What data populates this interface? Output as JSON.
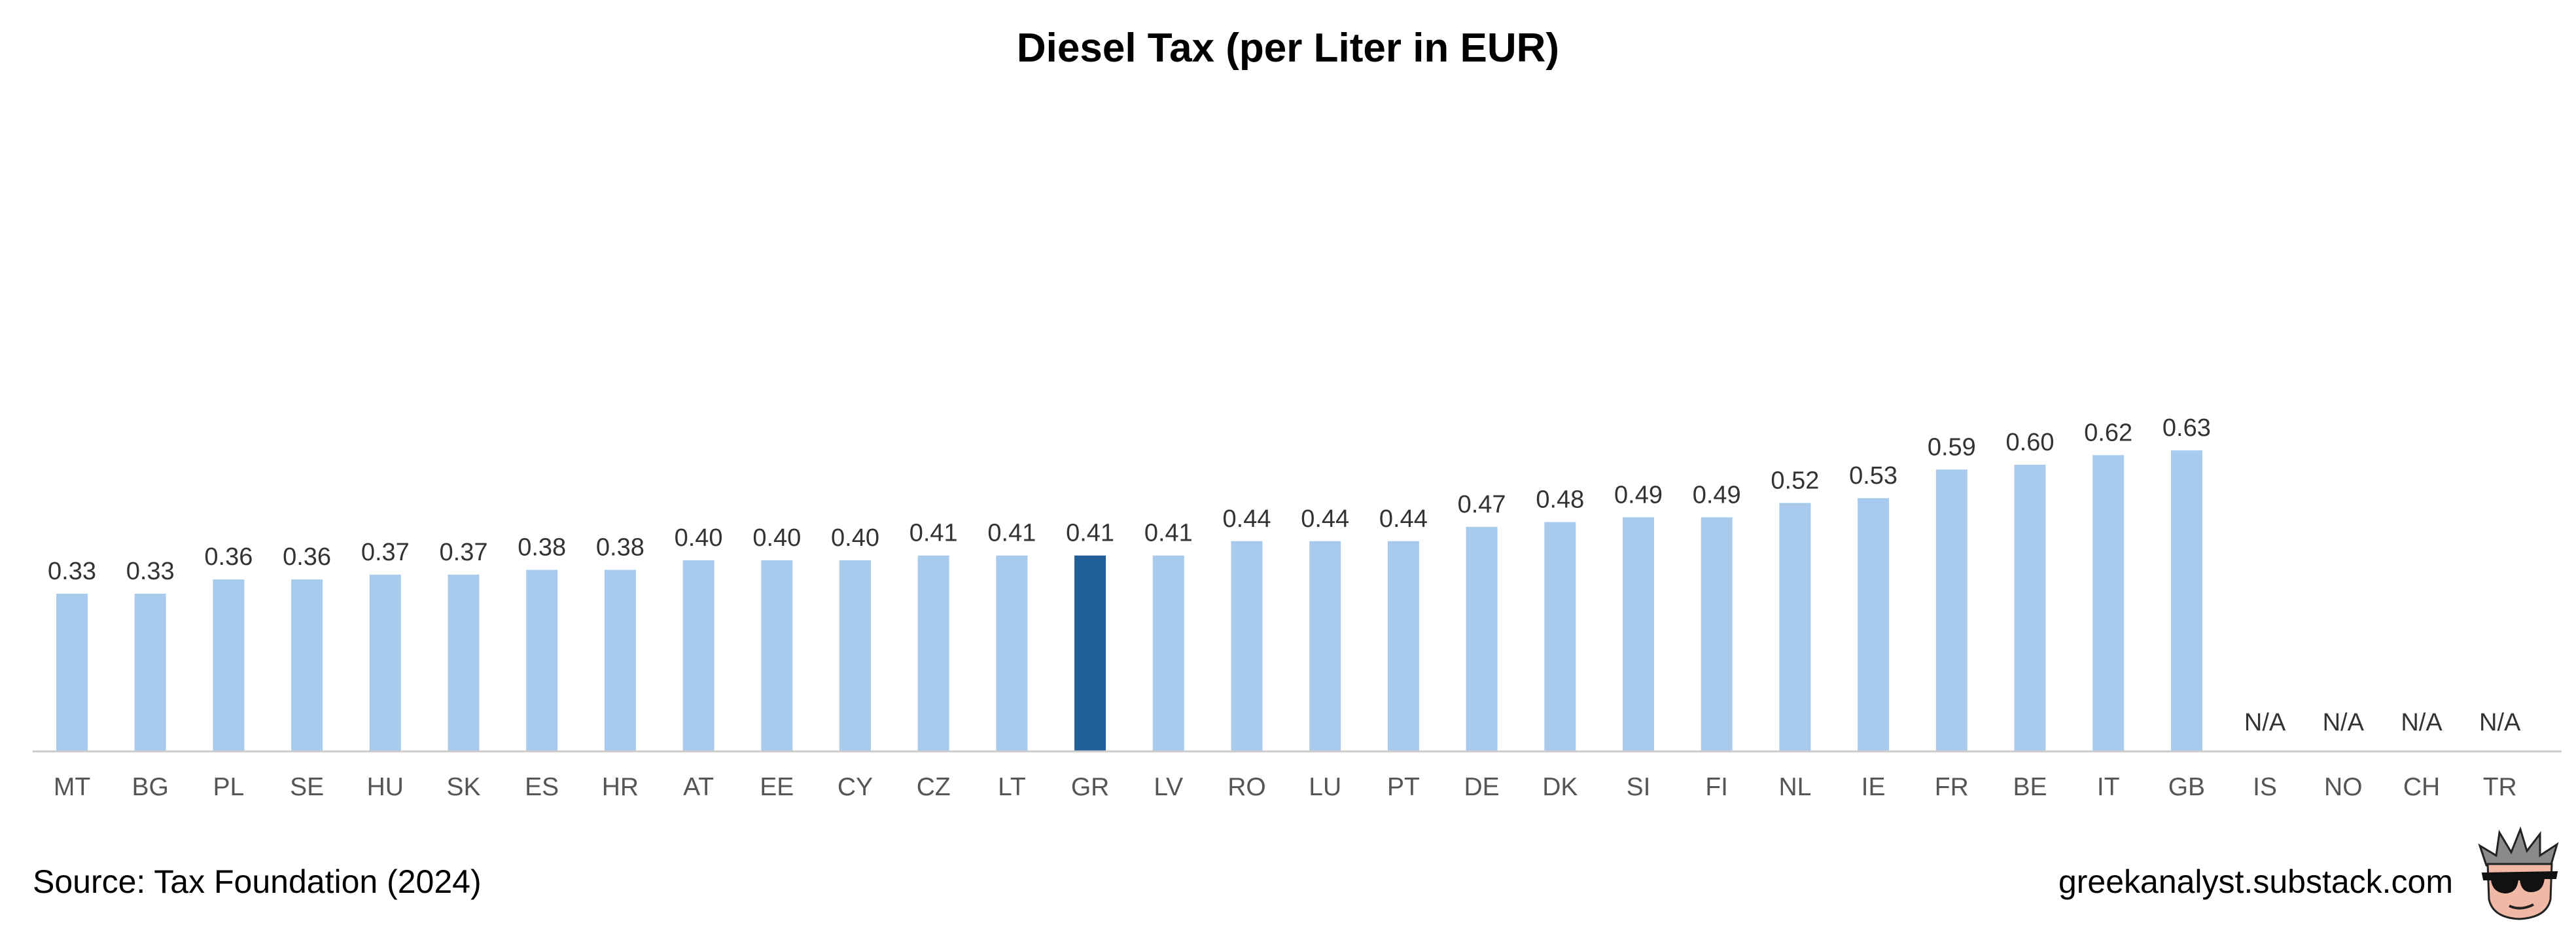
{
  "chart_data": {
    "type": "bar",
    "title": "Diesel Tax (per Liter in EUR)",
    "categories": [
      "MT",
      "BG",
      "PL",
      "SE",
      "HU",
      "SK",
      "ES",
      "HR",
      "AT",
      "EE",
      "CY",
      "CZ",
      "LT",
      "GR",
      "LV",
      "RO",
      "LU",
      "PT",
      "DE",
      "DK",
      "SI",
      "FI",
      "NL",
      "IE",
      "FR",
      "BE",
      "IT",
      "GB",
      "IS",
      "NO",
      "CH",
      "TR"
    ],
    "values": [
      0.33,
      0.33,
      0.36,
      0.36,
      0.37,
      0.37,
      0.38,
      0.38,
      0.4,
      0.4,
      0.4,
      0.41,
      0.41,
      0.41,
      0.41,
      0.44,
      0.44,
      0.44,
      0.47,
      0.48,
      0.49,
      0.49,
      0.52,
      0.53,
      0.59,
      0.6,
      0.62,
      0.63,
      null,
      null,
      null,
      null
    ],
    "value_labels": [
      "0.33",
      "0.33",
      "0.36",
      "0.36",
      "0.37",
      "0.37",
      "0.38",
      "0.38",
      "0.40",
      "0.40",
      "0.40",
      "0.41",
      "0.41",
      "0.41",
      "0.41",
      "0.44",
      "0.44",
      "0.44",
      "0.47",
      "0.48",
      "0.49",
      "0.49",
      "0.52",
      "0.53",
      "0.59",
      "0.60",
      "0.62",
      "0.63",
      "N/A",
      "N/A",
      "N/A",
      "N/A"
    ],
    "highlight": "GR",
    "ylim": [
      0,
      0.7
    ],
    "grid": false,
    "colors": {
      "bar": "#a8cbed",
      "highlight": "#205f99",
      "axis": "#cccccc"
    }
  },
  "footer": {
    "source": "Source: Tax Foundation (2024)",
    "site": "greekanalyst.substack.com"
  },
  "mascot_icon": "sunglasses-face-icon"
}
